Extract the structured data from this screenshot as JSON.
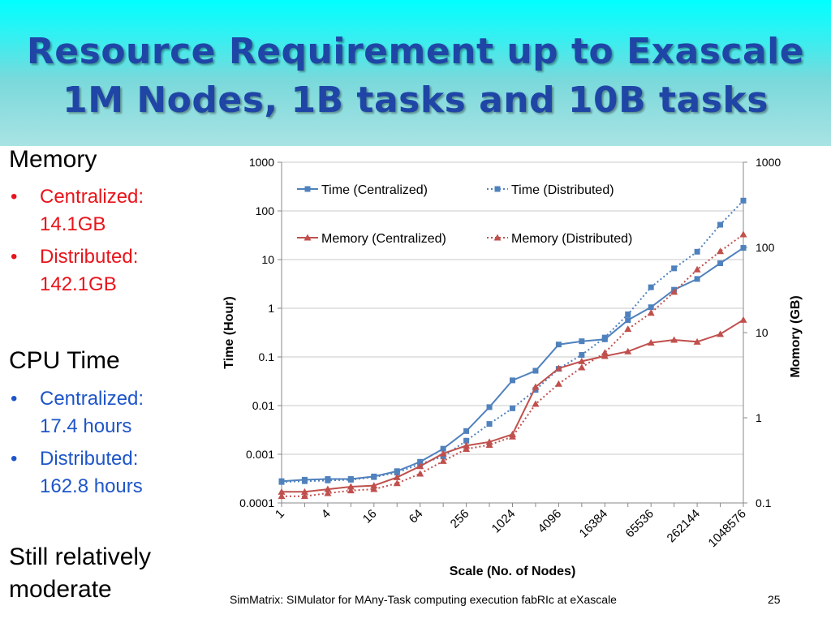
{
  "title": {
    "line1": "Resource Requirement up to Exascale",
    "line2": "1M Nodes, 1B tasks and 10B tasks"
  },
  "left": {
    "memory_heading": "Memory",
    "memory_centralized_1": "Centralized:",
    "memory_centralized_2": "14.1GB",
    "memory_distributed_1": "Distributed:",
    "memory_distributed_2": "142.1GB",
    "cpu_heading": "CPU Time",
    "cpu_centralized_1": "Centralized:",
    "cpu_centralized_2": "17.4 hours",
    "cpu_distributed_1": "Distributed:",
    "cpu_distributed_2": "162.8 hours",
    "note_1": "Still  relatively",
    "note_2": "moderate",
    "bullet": "•"
  },
  "footer": "SimMatrix: SIMulator for MAny-Task computing execution fabRIc at eXascale",
  "page_number": "25",
  "colors": {
    "time": "#4f81bd",
    "memory": "#c0504d",
    "title": "#1f46a6",
    "red_text": "#e8141b",
    "blue_text": "#1e55c8"
  },
  "chart_data": {
    "type": "line",
    "xlabel": "Scale (No. of Nodes)",
    "ylabel_left": "Time (Hour)",
    "ylabel_right": "Momory (GB)",
    "x": [
      1,
      2,
      4,
      8,
      16,
      32,
      64,
      128,
      256,
      512,
      1024,
      2048,
      4096,
      8192,
      16384,
      32768,
      65536,
      131072,
      262144,
      524288,
      1048576
    ],
    "x_tick_labels": [
      "1",
      "4",
      "16",
      "64",
      "256",
      "1024",
      "4096",
      "16384",
      "65536",
      "262144",
      "1048576"
    ],
    "y_left_scale": "log",
    "y_left_range": [
      0.0001,
      1000
    ],
    "y_left_ticks": [
      "0.0001",
      "0.001",
      "0.01",
      "0.1",
      "1",
      "10",
      "100",
      "1000"
    ],
    "y_right_scale": "log",
    "y_right_range": [
      0.1,
      1000
    ],
    "y_right_ticks": [
      "0.1",
      "1",
      "10",
      "100",
      "1000"
    ],
    "legend": [
      "Time (Centralized)",
      "Time (Distributed)",
      "Memory (Centralized)",
      "Memory (Distributed)"
    ],
    "legend_position": "top-left inside plot",
    "grid": "horizontal major gridlines",
    "series": [
      {
        "name": "Time (Centralized)",
        "axis": "left",
        "style": "solid",
        "marker": "square",
        "values": [
          0.00028,
          0.0003,
          0.00031,
          0.00031,
          0.00035,
          0.00045,
          0.0007,
          0.0013,
          0.003,
          0.0093,
          0.033,
          0.052,
          0.18,
          0.21,
          0.23,
          0.57,
          1.05,
          2.4,
          4.0,
          8.4,
          17.4
        ]
      },
      {
        "name": "Time (Distributed)",
        "axis": "left",
        "style": "dotted",
        "marker": "square",
        "values": [
          0.00027,
          0.00028,
          0.00029,
          0.0003,
          0.00034,
          0.00042,
          0.00063,
          0.0009,
          0.0019,
          0.0042,
          0.0088,
          0.021,
          0.057,
          0.11,
          0.25,
          0.75,
          2.7,
          6.6,
          14.5,
          52,
          162.8
        ]
      },
      {
        "name": "Memory (Centralized)",
        "axis": "right",
        "style": "solid",
        "marker": "triangle",
        "values": [
          0.135,
          0.135,
          0.145,
          0.155,
          0.16,
          0.2,
          0.27,
          0.38,
          0.47,
          0.52,
          0.64,
          2.3,
          3.8,
          4.6,
          5.3,
          6.0,
          7.6,
          8.2,
          7.8,
          9.6,
          14.1
        ]
      },
      {
        "name": "Memory (Distributed)",
        "axis": "right",
        "style": "dotted",
        "marker": "triangle",
        "values": [
          0.12,
          0.12,
          0.13,
          0.14,
          0.145,
          0.17,
          0.22,
          0.31,
          0.43,
          0.48,
          0.6,
          1.45,
          2.5,
          3.9,
          5.8,
          11,
          17,
          30,
          55,
          90,
          142.1
        ]
      }
    ]
  }
}
